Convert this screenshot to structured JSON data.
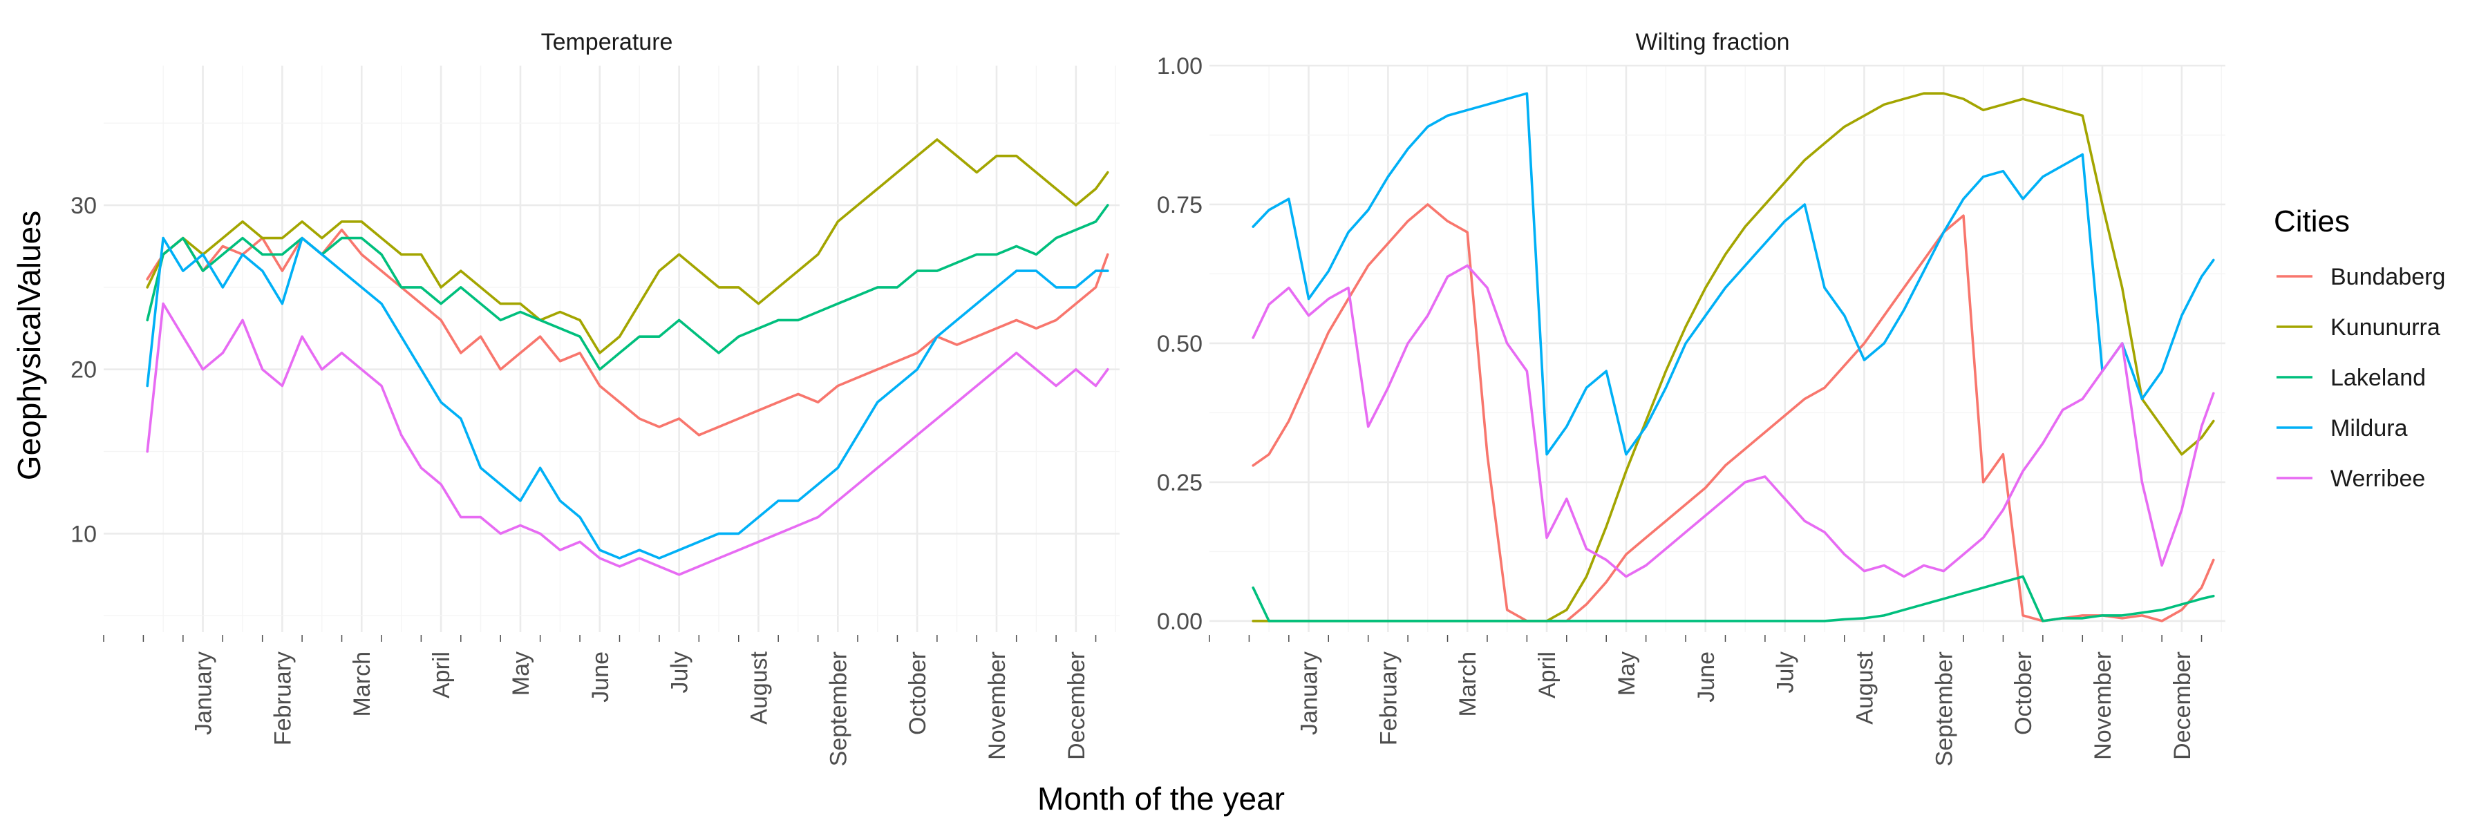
{
  "figure": {
    "xlabel": "Month of the year",
    "ylabel": "GeophysicalValues"
  },
  "legend": {
    "title": "Cities",
    "items": [
      {
        "name": "Bundaberg",
        "color": "#F8766D"
      },
      {
        "name": "Kununurra",
        "color": "#A3A500"
      },
      {
        "name": "Lakeland",
        "color": "#00BF7D"
      },
      {
        "name": "Mildura",
        "color": "#00B0F6"
      },
      {
        "name": "Werribee",
        "color": "#E76BF3"
      }
    ]
  },
  "chart_data": [
    {
      "type": "line",
      "title": "Temperature",
      "xlabel": "Month of the year",
      "ylabel": "GeophysicalValues",
      "x_tick_labels": [
        "January",
        "February",
        "March",
        "April",
        "May",
        "June",
        "July",
        "August",
        "September",
        "October",
        "November",
        "December"
      ],
      "y_ticks": [
        10,
        20,
        30
      ],
      "y_tick_labels": [
        "10",
        "20",
        "30"
      ],
      "ylim": [
        4,
        38.5
      ],
      "grid": true,
      "x_month": [
        0.3,
        0.5,
        0.75,
        1.0,
        1.25,
        1.5,
        1.75,
        2.0,
        2.25,
        2.5,
        2.75,
        3.0,
        3.25,
        3.5,
        3.75,
        4.0,
        4.25,
        4.5,
        4.75,
        5.0,
        5.25,
        5.5,
        5.75,
        6.0,
        6.25,
        6.5,
        6.75,
        7.0,
        7.25,
        7.5,
        7.75,
        8.0,
        8.25,
        8.5,
        8.75,
        9.0,
        9.25,
        9.5,
        9.75,
        10.0,
        10.25,
        10.5,
        10.75,
        11.0,
        11.25,
        11.5,
        11.75,
        12.0,
        12.25,
        12.4
      ],
      "series": [
        {
          "name": "Bundaberg",
          "color": "#F8766D",
          "values": [
            25.5,
            27,
            28,
            26,
            27.5,
            27,
            28,
            26,
            28,
            27,
            28.5,
            27,
            26,
            25,
            24,
            23,
            21,
            22,
            20,
            21,
            22,
            20.5,
            21,
            19,
            18,
            17,
            16.5,
            17,
            16,
            16.5,
            17,
            17.5,
            18,
            18.5,
            18,
            19,
            19.5,
            20,
            20.5,
            21,
            22,
            21.5,
            22,
            22.5,
            23,
            22.5,
            23,
            24,
            25,
            27
          ]
        },
        {
          "name": "Kununurra",
          "color": "#A3A500",
          "values": [
            25,
            27,
            28,
            27,
            28,
            29,
            28,
            28,
            29,
            28,
            29,
            29,
            28,
            27,
            27,
            25,
            26,
            25,
            24,
            24,
            23,
            23.5,
            23,
            21,
            22,
            24,
            26,
            27,
            26,
            25,
            25,
            24,
            25,
            26,
            27,
            29,
            30,
            31,
            32,
            33,
            34,
            33,
            32,
            33,
            33,
            32,
            31,
            30,
            31,
            32
          ]
        },
        {
          "name": "Lakeland",
          "color": "#00BF7D",
          "values": [
            23,
            27,
            28,
            26,
            27,
            28,
            27,
            27,
            28,
            27,
            28,
            28,
            27,
            25,
            25,
            24,
            25,
            24,
            23,
            23.5,
            23,
            22.5,
            22,
            20,
            21,
            22,
            22,
            23,
            22,
            21,
            22,
            22.5,
            23,
            23,
            23.5,
            24,
            24.5,
            25,
            25,
            26,
            26,
            26.5,
            27,
            27,
            27.5,
            27,
            28,
            28.5,
            29,
            30
          ]
        },
        {
          "name": "Mildura",
          "color": "#00B0F6",
          "values": [
            19,
            28,
            26,
            27,
            25,
            27,
            26,
            24,
            28,
            27,
            26,
            25,
            24,
            22,
            20,
            18,
            17,
            14,
            13,
            12,
            14,
            12,
            11,
            9,
            8.5,
            9,
            8.5,
            9,
            9.5,
            10,
            10,
            11,
            12,
            12,
            13,
            14,
            16,
            18,
            19,
            20,
            22,
            23,
            24,
            25,
            26,
            26,
            25,
            25,
            26,
            26
          ]
        },
        {
          "name": "Werribee",
          "color": "#E76BF3",
          "values": [
            15,
            24,
            22,
            20,
            21,
            23,
            20,
            19,
            22,
            20,
            21,
            20,
            19,
            16,
            14,
            13,
            11,
            11,
            10,
            10.5,
            10,
            9,
            9.5,
            8.5,
            8,
            8.5,
            8,
            7.5,
            8,
            8.5,
            9,
            9.5,
            10,
            10.5,
            11,
            12,
            13,
            14,
            15,
            16,
            17,
            18,
            19,
            20,
            21,
            20,
            19,
            20,
            19,
            20
          ]
        }
      ]
    },
    {
      "type": "line",
      "title": "Wilting fraction",
      "xlabel": "Month of the year",
      "ylabel": "GeophysicalValues",
      "x_tick_labels": [
        "January",
        "February",
        "March",
        "April",
        "May",
        "June",
        "July",
        "August",
        "September",
        "October",
        "November",
        "December"
      ],
      "y_ticks": [
        0,
        0.25,
        0.5,
        0.75,
        1.0
      ],
      "y_tick_labels": [
        "0.00",
        "0.25",
        "0.50",
        "0.75",
        "1.00"
      ],
      "ylim": [
        -0.02,
        1.0
      ],
      "grid": true,
      "x_month": [
        0.3,
        0.5,
        0.75,
        1.0,
        1.25,
        1.5,
        1.75,
        2.0,
        2.25,
        2.5,
        2.75,
        3.0,
        3.25,
        3.5,
        3.75,
        4.0,
        4.25,
        4.5,
        4.75,
        5.0,
        5.25,
        5.5,
        5.75,
        6.0,
        6.25,
        6.5,
        6.75,
        7.0,
        7.25,
        7.5,
        7.75,
        8.0,
        8.25,
        8.5,
        8.75,
        9.0,
        9.25,
        9.5,
        9.75,
        10.0,
        10.25,
        10.5,
        10.75,
        11.0,
        11.25,
        11.5,
        11.75,
        12.0,
        12.25,
        12.4
      ],
      "series": [
        {
          "name": "Bundaberg",
          "color": "#F8766D",
          "values": [
            0.28,
            0.3,
            0.36,
            0.44,
            0.52,
            0.58,
            0.64,
            0.68,
            0.72,
            0.75,
            0.72,
            0.7,
            0.3,
            0.02,
            0.0,
            0.0,
            0.0,
            0.03,
            0.07,
            0.12,
            0.15,
            0.18,
            0.21,
            0.24,
            0.28,
            0.31,
            0.34,
            0.37,
            0.4,
            0.42,
            0.46,
            0.5,
            0.55,
            0.6,
            0.65,
            0.7,
            0.73,
            0.25,
            0.3,
            0.01,
            0.0,
            0.005,
            0.01,
            0.01,
            0.005,
            0.01,
            0.0,
            0.02,
            0.06,
            0.11
          ]
        },
        {
          "name": "Kununurra",
          "color": "#A3A500",
          "values": [
            0.0,
            0.0,
            0.0,
            0.0,
            0.0,
            0.0,
            0.0,
            0.0,
            0.0,
            0.0,
            0.0,
            0.0,
            0.0,
            0.0,
            0.0,
            0.0,
            0.02,
            0.08,
            0.17,
            0.27,
            0.36,
            0.45,
            0.53,
            0.6,
            0.66,
            0.71,
            0.75,
            0.79,
            0.83,
            0.86,
            0.89,
            0.91,
            0.93,
            0.94,
            0.95,
            0.95,
            0.94,
            0.92,
            0.93,
            0.94,
            0.93,
            0.92,
            0.91,
            0.75,
            0.6,
            0.4,
            0.35,
            0.3,
            0.33,
            0.36
          ]
        },
        {
          "name": "Lakeland",
          "color": "#00BF7D",
          "values": [
            0.06,
            0.0,
            0.0,
            0.0,
            0.0,
            0.0,
            0.0,
            0.0,
            0.0,
            0.0,
            0.0,
            0.0,
            0.0,
            0.0,
            0.0,
            0.0,
            0.0,
            0.0,
            0.0,
            0.0,
            0.0,
            0.0,
            0.0,
            0.0,
            0.0,
            0.0,
            0.0,
            0.0,
            0.0,
            0.0,
            0.003,
            0.005,
            0.01,
            0.02,
            0.03,
            0.04,
            0.05,
            0.06,
            0.07,
            0.08,
            0.0,
            0.005,
            0.005,
            0.01,
            0.01,
            0.015,
            0.02,
            0.03,
            0.04,
            0.045
          ]
        },
        {
          "name": "Mildura",
          "color": "#00B0F6",
          "values": [
            0.71,
            0.74,
            0.76,
            0.58,
            0.63,
            0.7,
            0.74,
            0.8,
            0.85,
            0.89,
            0.91,
            0.92,
            0.93,
            0.94,
            0.95,
            0.3,
            0.35,
            0.42,
            0.45,
            0.3,
            0.35,
            0.42,
            0.5,
            0.55,
            0.6,
            0.64,
            0.68,
            0.72,
            0.75,
            0.6,
            0.55,
            0.47,
            0.5,
            0.56,
            0.63,
            0.7,
            0.76,
            0.8,
            0.81,
            0.76,
            0.8,
            0.82,
            0.84,
            0.45,
            0.5,
            0.4,
            0.45,
            0.55,
            0.62,
            0.65
          ]
        },
        {
          "name": "Werribee",
          "color": "#E76BF3",
          "values": [
            0.51,
            0.57,
            0.6,
            0.55,
            0.58,
            0.6,
            0.35,
            0.42,
            0.5,
            0.55,
            0.62,
            0.64,
            0.6,
            0.5,
            0.45,
            0.15,
            0.22,
            0.13,
            0.11,
            0.08,
            0.1,
            0.13,
            0.16,
            0.19,
            0.22,
            0.25,
            0.26,
            0.22,
            0.18,
            0.16,
            0.12,
            0.09,
            0.1,
            0.08,
            0.1,
            0.09,
            0.12,
            0.15,
            0.2,
            0.27,
            0.32,
            0.38,
            0.4,
            0.45,
            0.5,
            0.25,
            0.1,
            0.2,
            0.35,
            0.41
          ]
        }
      ]
    }
  ]
}
